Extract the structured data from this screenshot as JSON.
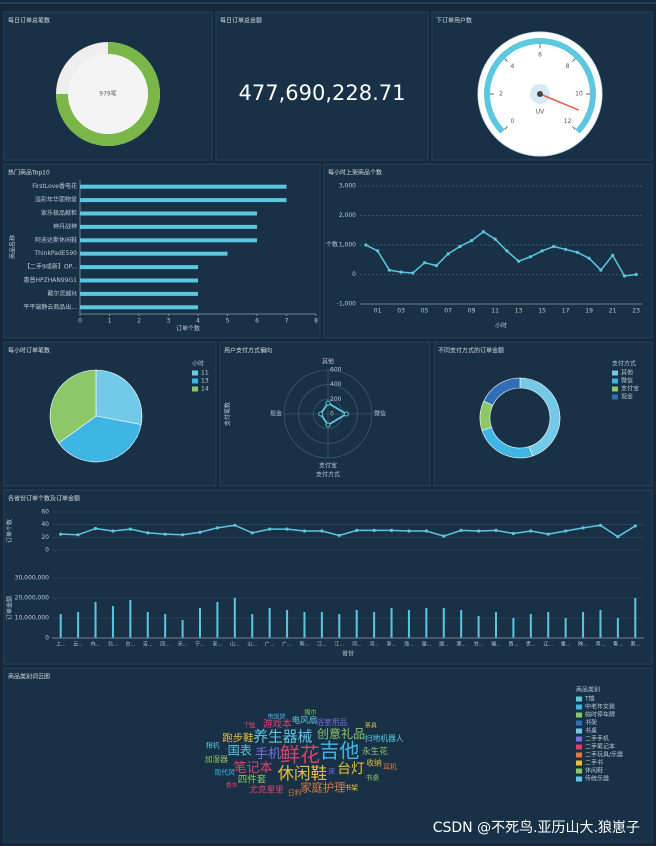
{
  "chart_data": [
    {
      "type": "ring",
      "title": "每日订单总笔数",
      "values": [
        979
      ],
      "value_labels": [
        "979笔"
      ],
      "color": "#7ab648"
    },
    {
      "type": "kpi",
      "title": "每日订单总金额",
      "values": [
        477690228.71
      ],
      "value_labels": [
        "477,690,228.71"
      ]
    },
    {
      "type": "gauge",
      "title": "下订单用户数",
      "label": "UV",
      "values": [
        11
      ],
      "ylim": [
        0,
        12
      ],
      "yticks": [
        0,
        2,
        4,
        6,
        8,
        10,
        12
      ],
      "color": "#5bc8e0"
    },
    {
      "type": "hbar",
      "title": "热门商品Top10",
      "ylabel": "商品名称",
      "xlabel": "订单个数",
      "color": "#5bc8e0",
      "categories": [
        "FirstLove香电花",
        "溢彩年华面物堂",
        "家乐极品献柜",
        "神丹战神",
        "阿迪达斯休闲鞋",
        "ThinkPadE590",
        "【二手9成新】OP...",
        "惠普HPZHAN99G1",
        "戴尔灵越lit",
        "平平端静云商品出..."
      ],
      "values": [
        7,
        7,
        6,
        6,
        6,
        5,
        4,
        4,
        4,
        4
      ],
      "xlim": [
        0,
        8
      ],
      "xticks": [
        0,
        1,
        2,
        3,
        4,
        5,
        6,
        7,
        8
      ]
    },
    {
      "type": "line",
      "title": "每小时上架商品个数",
      "ylabel": "个数",
      "xlabel": "小时",
      "color": "#5bc8e0",
      "categories": [
        null,
        "01",
        null,
        "03",
        null,
        "05",
        null,
        "07",
        null,
        "09",
        null,
        "11",
        null,
        "13",
        null,
        "15",
        null,
        "17",
        null,
        "19",
        null,
        "21",
        null,
        "23"
      ],
      "values": [
        1000,
        800,
        150,
        80,
        50,
        400,
        300,
        700,
        950,
        1150,
        1450,
        1200,
        800,
        450,
        600,
        800,
        950,
        850,
        750,
        550,
        150,
        650,
        -50,
        0
      ],
      "ylim": [
        -1000,
        3000
      ],
      "yticks": [
        {
          "value": -1000,
          "label": "-1,000"
        },
        0,
        {
          "value": 1000,
          "label": "1,000"
        },
        {
          "value": 2000,
          "label": "2,000"
        },
        {
          "value": 3000,
          "label": "3,000"
        }
      ]
    },
    {
      "type": "pie",
      "title": "每小时订单笔数",
      "legend_title": "小时",
      "categories": [
        "11",
        "13",
        "14"
      ],
      "values": [
        28,
        37,
        35
      ],
      "colors": [
        "#72c9e8",
        "#3fb5e6",
        "#8cc86a"
      ]
    },
    {
      "type": "radar",
      "title": "用户支付方式偏向",
      "ylabel": "支付笔数",
      "xlabel": "支付方式",
      "indicators": [
        "其他",
        "微信",
        "支付宝",
        "现金"
      ],
      "values": [
        150,
        250,
        150,
        100
      ],
      "ylim": [
        0,
        600
      ],
      "yticks": [
        0,
        200,
        400,
        600
      ],
      "color": "#5bc8e0"
    },
    {
      "type": "donut",
      "title": "不同支付方式的订单金额",
      "legend_title": "支付方式",
      "categories": [
        "其他",
        "微信",
        "支付宝",
        "现金"
      ],
      "values": [
        45,
        25,
        12,
        18
      ],
      "colors": [
        "#72c9e8",
        "#3fb5e6",
        "#8cc86a",
        "#2f6fb8"
      ]
    },
    {
      "type": "combo",
      "title": "各省份订单个数及订单金额",
      "xlabel": "省份",
      "categories": [
        "上...",
        "云...",
        "内...",
        "北...",
        "台...",
        "吉...",
        "四...",
        "天...",
        "宁...",
        "安...",
        "山...",
        "山...",
        "广...",
        "广...",
        "新...",
        "江...",
        "江...",
        "河...",
        "河...",
        "浙...",
        "海...",
        "湖...",
        "湖...",
        "澳...",
        "甘...",
        "福...",
        "西...",
        "贵...",
        "辽...",
        "重...",
        "陕...",
        "青...",
        "香...",
        "黑..."
      ],
      "series": [
        {
          "name": "订单个数",
          "color": "#5bc8e0",
          "values": [
            25,
            24,
            34,
            30,
            33,
            27,
            25,
            24,
            28,
            35,
            39,
            27,
            33,
            33,
            30,
            30,
            23,
            31,
            31,
            31,
            30,
            30,
            22,
            31,
            30,
            31,
            26,
            30,
            25,
            30,
            35,
            39,
            21,
            38
          ]
        },
        {
          "name": "订单金额",
          "color": "#5bc8e0",
          "axis": "y2",
          "values": [
            12000000,
            13000000,
            18000000,
            16000000,
            19000000,
            13000000,
            12000000,
            9000000,
            15000000,
            18000000,
            20000000,
            12000000,
            15000000,
            14000000,
            13000000,
            13000000,
            12000000,
            14000000,
            13000000,
            15000000,
            14000000,
            15000000,
            15000000,
            14000000,
            11000000,
            13000000,
            10000000,
            12000000,
            13000000,
            10000000,
            13000000,
            14000000,
            10000000,
            20000000
          ]
        }
      ],
      "ylim": [
        0,
        60
      ],
      "yticks": [
        0,
        20,
        40,
        60
      ],
      "y2lim": [
        0,
        30000000
      ],
      "y2ticks": [
        0,
        {
          "value": 10000000,
          "label": "10,000,000"
        },
        {
          "value": 20000000,
          "label": "20,000,000"
        },
        {
          "value": 30000000,
          "label": "30,000,000"
        }
      ]
    },
    {
      "type": "wordcloud",
      "title": "商品类别词云图",
      "categories": [
        "鲜花",
        "吉他",
        "休闲鞋",
        "养生器械",
        "手机",
        "笔记本",
        "台灯",
        "创意礼品",
        "国表",
        "家庭护理",
        "跑步鞋",
        "四件套",
        "游戏本",
        "永生花",
        "电风扇",
        "尤克里里",
        "收纳",
        "浴室用品",
        "扫地机器人",
        "加湿器",
        "日料",
        "现代风",
        "T恤",
        "书桌",
        "书架",
        "相机",
        "床",
        "耳机",
        "电饭煲",
        "香水",
        "围巾",
        "茶具"
      ],
      "values": [
        20,
        20,
        16,
        14,
        12,
        12,
        13,
        11,
        11,
        10,
        9,
        8,
        8,
        7,
        7,
        7,
        6,
        6,
        6,
        6,
        5,
        5,
        5,
        5,
        5,
        5,
        5,
        5,
        4,
        4,
        4,
        4
      ],
      "colors": [
        "#e0406e",
        "#3fb5e6",
        "#e8c040",
        "#5bc8e0",
        "#7a6ee0",
        "#e0406e",
        "#e8c040",
        "#8cc86a",
        "#5bc8e0",
        "#e07a40",
        "#e8c040",
        "#8cc86a",
        "#e0406e",
        "#8cc86a",
        "#5bc8e0",
        "#e0406e",
        "#e8c040",
        "#7a6ee0",
        "#5bc8e0",
        "#8cc86a",
        "#e07a40",
        "#3fb5e6",
        "#e0406e",
        "#8cc86a",
        "#e8c040",
        "#5bc8e0",
        "#7a6ee0",
        "#e07a40",
        "#3fb5e6",
        "#e0406e",
        "#8cc86a",
        "#e8c040"
      ],
      "legend_title": "商品类别",
      "legend": [
        "T恤",
        "中老年女装",
        "临时停车牌",
        "书架",
        "书桌",
        "二手手机",
        "二手笔记本",
        "二手玩具/乐器",
        "二手书",
        "休闲鞋",
        "传统乐器"
      ],
      "legend_colors": [
        "#5bc8e0",
        "#3fb5e6",
        "#8cc86a",
        "#2f6fb8",
        "#72c9e8",
        "#7a6ee0",
        "#e0406e",
        "#e07a40",
        "#e8c040",
        "#8cc86a",
        "#5bc8e0"
      ]
    }
  ],
  "watermark": "CSDN @不死鸟.亚历山大.狼崽子"
}
